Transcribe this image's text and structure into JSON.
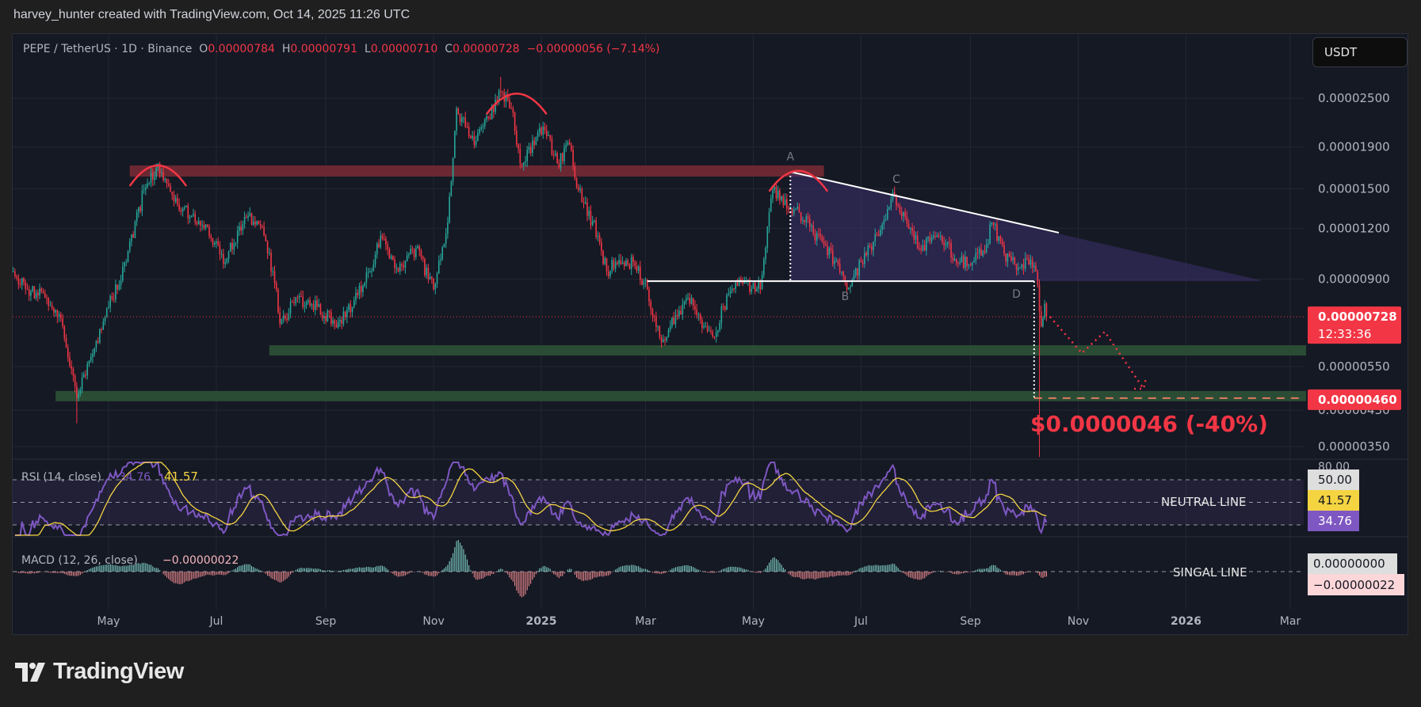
{
  "header": {
    "attribution": "harvey_hunter created with TradingView.com, Oct 14, 2025 11:26 UTC"
  },
  "legend": {
    "symbol": "PEPE / TetherUS · 1D · Binance",
    "o_label": "O",
    "open": "0.00000784",
    "h_label": "H",
    "high": "0.00000791",
    "l_label": "L",
    "low": "0.00000710",
    "c_label": "C",
    "close": "0.00000728",
    "change": "−0.00000056 (−7.14%)"
  },
  "currency_button": "USDT",
  "branding": {
    "logo_text": "TradingView"
  },
  "colors": {
    "up": "#26a69a",
    "down": "#f23645",
    "background": "#151924",
    "rsi_line": "#7e57c2",
    "rsi_ma": "#f5d442",
    "resistance_zone": "#7a2b35",
    "support_zone": "#2c5236",
    "triangle_fill": "#3a2f6b",
    "annotation_red": "#f23645"
  },
  "chart_data": {
    "type": "candlestick",
    "timeframe": "1D",
    "price_scale": "log",
    "grid": true,
    "price_axis": {
      "ticks": [
        "0.00002500",
        "0.00001900",
        "0.00001500",
        "0.00001200",
        "0.00000900",
        "0.00000550",
        "0.00000430",
        "0.00000350"
      ],
      "last_price_label": "0.00000728",
      "countdown": "12:33:36",
      "target_label": "0.00000460"
    },
    "time_axis": {
      "ticks": [
        {
          "label": "May",
          "date": "2024-05-01"
        },
        {
          "label": "Jul",
          "date": "2024-07-01"
        },
        {
          "label": "Sep",
          "date": "2024-09-01"
        },
        {
          "label": "Nov",
          "date": "2024-11-01"
        },
        {
          "label": "2025",
          "date": "2025-01-01",
          "bold": true
        },
        {
          "label": "Mar",
          "date": "2025-03-01"
        },
        {
          "label": "May",
          "date": "2025-05-01"
        },
        {
          "label": "Jul",
          "date": "2025-07-01"
        },
        {
          "label": "Sep",
          "date": "2025-09-01"
        },
        {
          "label": "Nov",
          "date": "2025-11-01"
        },
        {
          "label": "2026",
          "date": "2026-01-01",
          "bold": true
        },
        {
          "label": "Mar",
          "date": "2026-03-01"
        }
      ]
    },
    "approx_close": [
      [
        "2024-03-08",
        9.4e-06
      ],
      [
        "2024-03-16",
        8.5e-06
      ],
      [
        "2024-03-26",
        8.1e-06
      ],
      [
        "2024-04-05",
        6.9e-06
      ],
      [
        "2024-04-13",
        4.6e-06
      ],
      [
        "2024-04-21",
        5.8e-06
      ],
      [
        "2024-05-01",
        7.7e-06
      ],
      [
        "2024-05-11",
        9.9e-06
      ],
      [
        "2024-05-21",
        1.49e-05
      ],
      [
        "2024-05-28",
        1.69e-05
      ],
      [
        "2024-06-06",
        1.45e-05
      ],
      [
        "2024-06-16",
        1.28e-05
      ],
      [
        "2024-06-26",
        1.21e-05
      ],
      [
        "2024-07-06",
        9.9e-06
      ],
      [
        "2024-07-17",
        1.28e-05
      ],
      [
        "2024-07-27",
        1.21e-05
      ],
      [
        "2024-08-04",
        8.5e-06
      ],
      [
        "2024-08-06",
        7e-06
      ],
      [
        "2024-08-16",
        8.1e-06
      ],
      [
        "2024-08-27",
        7.7e-06
      ],
      [
        "2024-09-06",
        7e-06
      ],
      [
        "2024-09-16",
        7.7e-06
      ],
      [
        "2024-09-26",
        9.4e-06
      ],
      [
        "2024-10-02",
        1.15e-05
      ],
      [
        "2024-10-12",
        9.4e-06
      ],
      [
        "2024-10-22",
        1.07e-05
      ],
      [
        "2024-11-01",
        8.5e-06
      ],
      [
        "2024-11-09",
        1.24e-05
      ],
      [
        "2024-11-14",
        2.36e-05
      ],
      [
        "2024-11-19",
        2.13e-05
      ],
      [
        "2024-11-24",
        1.92e-05
      ],
      [
        "2024-12-02",
        2.24e-05
      ],
      [
        "2024-12-09",
        2.6e-05
      ],
      [
        "2024-12-15",
        2.36e-05
      ],
      [
        "2024-12-20",
        1.73e-05
      ],
      [
        "2024-12-28",
        1.92e-05
      ],
      [
        "2025-01-02",
        2.13e-05
      ],
      [
        "2025-01-10",
        1.73e-05
      ],
      [
        "2025-01-17",
        1.92e-05
      ],
      [
        "2025-01-22",
        1.49e-05
      ],
      [
        "2025-02-02",
        1.15e-05
      ],
      [
        "2025-02-07",
        9.4e-06
      ],
      [
        "2025-02-12",
        9.9e-06
      ],
      [
        "2025-02-22",
        9.9e-06
      ],
      [
        "2025-03-02",
        8.5e-06
      ],
      [
        "2025-03-10",
        6.3e-06
      ],
      [
        "2025-03-15",
        6.9e-06
      ],
      [
        "2025-03-25",
        8.1e-06
      ],
      [
        "2025-04-04",
        6.9e-06
      ],
      [
        "2025-04-09",
        6.5e-06
      ],
      [
        "2025-04-14",
        7.7e-06
      ],
      [
        "2025-04-24",
        8.9e-06
      ],
      [
        "2025-05-05",
        8.5e-06
      ],
      [
        "2025-05-09",
        1.21e-05
      ],
      [
        "2025-05-12",
        1.49e-05
      ],
      [
        "2025-05-20",
        1.34e-05
      ],
      [
        "2025-05-25",
        1.34e-05
      ],
      [
        "2025-06-02",
        1.21e-05
      ],
      [
        "2025-06-10",
        1.095e-05
      ],
      [
        "2025-06-20",
        9.4e-06
      ],
      [
        "2025-06-23",
        8.5e-06
      ],
      [
        "2025-07-01",
        9.9e-06
      ],
      [
        "2025-07-11",
        1.15e-05
      ],
      [
        "2025-07-20",
        1.45e-05
      ],
      [
        "2025-07-26",
        1.28e-05
      ],
      [
        "2025-08-03",
        1.07e-05
      ],
      [
        "2025-08-11",
        1.15e-05
      ],
      [
        "2025-08-18",
        1.095e-05
      ],
      [
        "2025-08-26",
        9.9e-06
      ],
      [
        "2025-09-02",
        9.9e-06
      ],
      [
        "2025-09-10",
        1.095e-05
      ],
      [
        "2025-09-13",
        1.24e-05
      ],
      [
        "2025-09-20",
        1.04e-05
      ],
      [
        "2025-09-28",
        9.6e-06
      ],
      [
        "2025-10-03",
        1.01e-05
      ],
      [
        "2025-10-08",
        9.4e-06
      ],
      [
        "2025-10-10",
        7.5e-06
      ],
      [
        "2025-10-11",
        6.9e-06
      ],
      [
        "2025-10-13",
        7.84e-06
      ]
    ],
    "wick_extremes": [
      {
        "date": "2024-04-13",
        "low": 3.99e-06
      },
      {
        "date": "2024-12-09",
        "high": 2.82e-05
      },
      {
        "date": "2025-10-10",
        "low": 3.3e-06
      }
    ],
    "last_candle": {
      "date": "2025-10-14",
      "open": 7.84e-06,
      "high": 7.91e-06,
      "low": 7.1e-06,
      "close": 7.28e-06
    },
    "annotations": {
      "resistance_zone": {
        "from": "2024-05-13",
        "to": "2025-06-10",
        "price_low": 1.606e-05,
        "price_high": 1.71e-05
      },
      "support_zones": [
        {
          "from": "2024-07-31",
          "to": "2026-03-10",
          "price_low": 5.85e-06,
          "price_high": 6.2e-06
        },
        {
          "from": "2024-04-01",
          "to": "2026-03-10",
          "price_low": 4.52e-06,
          "price_high": 4.79e-06
        }
      ],
      "shoulder_arcs": [
        {
          "from": "2024-05-13",
          "to": "2024-06-14",
          "price": 1.68e-05
        },
        {
          "from": "2024-12-01",
          "to": "2025-01-04",
          "price": 2.52e-05
        },
        {
          "from": "2025-05-10",
          "to": "2025-06-12",
          "price": 1.63e-05
        }
      ],
      "triangle": {
        "apex_a": {
          "date": "2025-05-22",
          "price": 1.65e-05
        },
        "upper_end": {
          "date": "2025-10-21",
          "price": 1.17e-05
        },
        "projection_end": {
          "date": "2026-02-12",
          "price": 8.95e-06
        },
        "support_price": 8.9e-06,
        "support_from": "2025-03-02",
        "support_to": "2025-10-07"
      },
      "point_labels": [
        {
          "text": "A",
          "date": "2025-05-22",
          "price": 1.76e-05
        },
        {
          "text": "B",
          "date": "2025-06-22",
          "price": 8e-06
        },
        {
          "text": "C",
          "date": "2025-07-21",
          "price": 1.55e-05
        },
        {
          "text": "D",
          "date": "2025-09-27",
          "price": 8.1e-06
        }
      ],
      "breakdown_date": "2025-10-07",
      "target_price": 4.6e-06,
      "target_text": "$0.0000046 (-40%)",
      "projection_path": [
        {
          "date": "2025-10-16",
          "price": 7.28e-06
        },
        {
          "date": "2025-11-03",
          "price": 5.93e-06
        },
        {
          "date": "2025-11-16",
          "price": 6.69e-06
        },
        {
          "date": "2025-12-08",
          "price": 4.85e-06
        }
      ]
    },
    "rsi": {
      "title": "RSI (14, close)",
      "value": "34.76",
      "ma_value": "41.57",
      "axis_top": "80.00",
      "level_label": "50.00",
      "levels": [
        70,
        50,
        30
      ],
      "neutral_label": "NEUTRAL LINE"
    },
    "macd": {
      "title": "MACD (12, 26, close)",
      "value": "−0.00000022",
      "zero_label": "0.00000000",
      "hist_label": "−0.00000022",
      "signal_label": "SINGAL LINE"
    }
  }
}
